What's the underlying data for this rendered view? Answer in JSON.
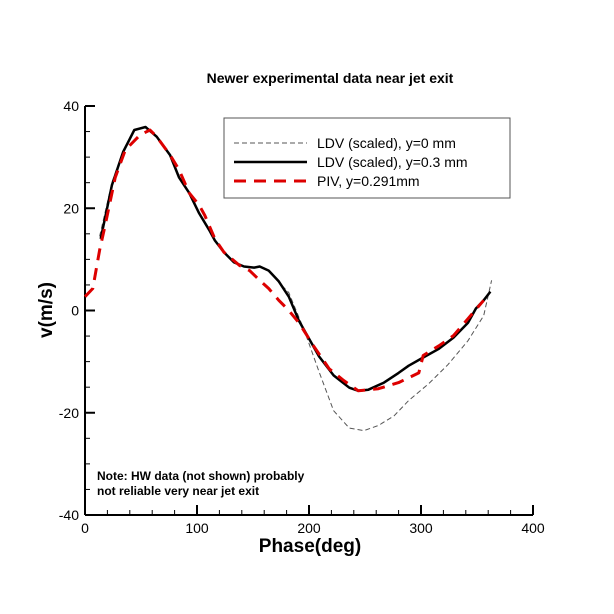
{
  "chart_data": {
    "type": "line",
    "title": "Newer experimental data near jet exit",
    "xlabel": "Phase(deg)",
    "ylabel": "v(m/s)",
    "xlim": [
      0,
      400
    ],
    "ylim": [
      -40,
      40
    ],
    "xticks": [
      0,
      100,
      200,
      300,
      400
    ],
    "yticks": [
      -40,
      -20,
      0,
      20,
      40
    ],
    "grid": false,
    "legend_position": "top-right",
    "series": [
      {
        "name": "LDV (scaled), y=0 mm",
        "color": "#555555",
        "style": "thin-dashed",
        "x": [
          13,
          24,
          34,
          44,
          54,
          64,
          76,
          84,
          93,
          102,
          111,
          116,
          124,
          133,
          142,
          151,
          156,
          164,
          173,
          182,
          196,
          209,
          222,
          236,
          249,
          262,
          276,
          289,
          307,
          324,
          342,
          356,
          363
        ],
        "y": [
          14.5,
          25,
          31.2,
          35.3,
          35.9,
          34,
          30.4,
          26,
          23,
          19,
          15.7,
          13.7,
          11.4,
          9.4,
          8.6,
          8.4,
          8.6,
          7.8,
          5.5,
          3.5,
          -4,
          -12,
          -19.6,
          -23,
          -23.5,
          -22.5,
          -20.6,
          -17.6,
          -14.3,
          -10.6,
          -5.9,
          -1,
          5.9
        ]
      },
      {
        "name": "LDV (scaled), y=0.3 mm",
        "color": "#000000",
        "style": "solid",
        "x": [
          14,
          24,
          34,
          44,
          54,
          64,
          76,
          84,
          93,
          102,
          111,
          116,
          124,
          133,
          142,
          151,
          156,
          164,
          173,
          182,
          191,
          200,
          209,
          222,
          236,
          244,
          253,
          267,
          280,
          289,
          302,
          316,
          329,
          342,
          349,
          356,
          362
        ],
        "y": [
          14,
          24.5,
          31,
          35.3,
          35.9,
          34,
          30.4,
          26,
          23,
          19,
          15.7,
          13.7,
          11.4,
          9.4,
          8.6,
          8.4,
          8.6,
          7.8,
          5.7,
          2.7,
          -2,
          -5.5,
          -9,
          -12.7,
          -15.1,
          -15.7,
          -15.5,
          -14.1,
          -12.2,
          -10.8,
          -9.2,
          -7.5,
          -5.3,
          -2.4,
          0.4,
          2,
          3.7
        ]
      },
      {
        "name": "PIV, y=0.291mm",
        "color": "#dd0000",
        "style": "dashed",
        "x": [
          0,
          7,
          13,
          18,
          27,
          36,
          49,
          58,
          64,
          76,
          84,
          93,
          102,
          107,
          116,
          124,
          138,
          147,
          156,
          164,
          173,
          182,
          191,
          204,
          218,
          231,
          244,
          262,
          280,
          298,
          302,
          316,
          329,
          342,
          356
        ],
        "y": [
          2.7,
          4.3,
          11.8,
          16.7,
          26,
          31.4,
          34.3,
          35.3,
          34,
          30.4,
          27.5,
          23,
          20.6,
          18.6,
          14,
          11.4,
          8.8,
          7.8,
          5.9,
          4.3,
          2,
          0,
          -2.4,
          -6.9,
          -11.4,
          -13.7,
          -15.7,
          -15.3,
          -14.1,
          -12.2,
          -8.8,
          -6.9,
          -4.9,
          -1.6,
          2
        ]
      }
    ],
    "annotations": [
      "Note:  HW data (not shown) probably",
      "not reliable very near jet exit"
    ]
  }
}
